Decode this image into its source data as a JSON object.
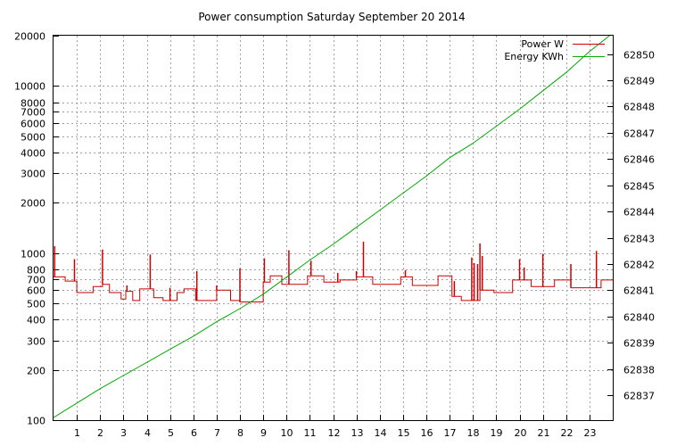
{
  "chart_data": {
    "type": "line",
    "title": "Power consumption Saturday September 20 2014",
    "xlabel": "",
    "ylabel": "",
    "xlim": [
      0,
      24
    ],
    "x_ticks": [
      1,
      2,
      3,
      4,
      5,
      6,
      7,
      8,
      9,
      10,
      11,
      12,
      13,
      14,
      15,
      16,
      17,
      18,
      19,
      20,
      21,
      22,
      23
    ],
    "y_left": {
      "scale": "log",
      "ylim": [
        100,
        20000
      ],
      "ticks": [
        {
          "value": 100,
          "label": "100"
        },
        {
          "value": 200,
          "label": "200"
        },
        {
          "value": 300,
          "label": "300"
        },
        {
          "value": 400,
          "label": "400"
        },
        {
          "value": 500,
          "label": "500"
        },
        {
          "value": 600,
          "label": "600"
        },
        {
          "value": 700,
          "label": "700"
        },
        {
          "value": 800,
          "label": "800"
        },
        {
          "value": 1000,
          "label": "1000"
        },
        {
          "value": 2000,
          "label": "2000"
        },
        {
          "value": 3000,
          "label": "3000"
        },
        {
          "value": 4000,
          "label": "4000"
        },
        {
          "value": 5000,
          "label": "5000"
        },
        {
          "value": 6000,
          "label": "6000"
        },
        {
          "value": 7000,
          "label": "7000"
        },
        {
          "value": 8000,
          "label": "8000"
        },
        {
          "value": 10000,
          "label": "10000"
        },
        {
          "value": 20000,
          "label": "20000"
        }
      ]
    },
    "y_right": {
      "scale": "linear",
      "ylim": [
        62836.05,
        62850.7
      ],
      "ticks": [
        62837,
        62838,
        62839,
        62840,
        62841,
        62842,
        62843,
        62844,
        62845,
        62846,
        62847,
        62848,
        62849,
        62850
      ]
    },
    "grid": true,
    "legend": "top-right",
    "series": [
      {
        "name": "Power W",
        "axis": "left",
        "color": "#cc0000",
        "steps": [
          [
            0.0,
            720
          ],
          [
            0.5,
            680
          ],
          [
            1.0,
            580
          ],
          [
            1.7,
            630
          ],
          [
            2.1,
            650
          ],
          [
            2.4,
            580
          ],
          [
            2.9,
            530
          ],
          [
            3.1,
            590
          ],
          [
            3.4,
            520
          ],
          [
            3.7,
            610
          ],
          [
            4.3,
            540
          ],
          [
            4.7,
            520
          ],
          [
            5.3,
            580
          ],
          [
            5.6,
            610
          ],
          [
            6.1,
            520
          ],
          [
            7.0,
            600
          ],
          [
            7.6,
            520
          ],
          [
            8.0,
            510
          ],
          [
            9.0,
            670
          ],
          [
            9.3,
            730
          ],
          [
            9.8,
            650
          ],
          [
            10.9,
            730
          ],
          [
            11.6,
            670
          ],
          [
            12.3,
            690
          ],
          [
            13.0,
            720
          ],
          [
            13.7,
            650
          ],
          [
            14.9,
            720
          ],
          [
            15.4,
            640
          ],
          [
            16.5,
            730
          ],
          [
            17.1,
            550
          ],
          [
            17.5,
            520
          ],
          [
            18.3,
            600
          ],
          [
            18.9,
            580
          ],
          [
            19.7,
            690
          ],
          [
            20.5,
            630
          ],
          [
            21.5,
            690
          ],
          [
            22.2,
            620
          ],
          [
            23.5,
            690
          ],
          [
            24.0,
            690
          ]
        ],
        "spikes": [
          [
            0.05,
            1100
          ],
          [
            0.9,
            920
          ],
          [
            2.1,
            1050
          ],
          [
            3.15,
            640
          ],
          [
            4.15,
            980
          ],
          [
            5.0,
            620
          ],
          [
            6.15,
            780
          ],
          [
            7.0,
            640
          ],
          [
            8.0,
            810
          ],
          [
            9.05,
            930
          ],
          [
            10.1,
            1040
          ],
          [
            11.05,
            900
          ],
          [
            12.2,
            760
          ],
          [
            13.0,
            780
          ],
          [
            13.3,
            1170
          ],
          [
            15.1,
            790
          ],
          [
            17.2,
            680
          ],
          [
            17.95,
            940
          ],
          [
            18.05,
            870
          ],
          [
            18.2,
            860
          ],
          [
            18.3,
            1140
          ],
          [
            18.4,
            960
          ],
          [
            19.2,
            580
          ],
          [
            20.0,
            920
          ],
          [
            20.2,
            820
          ],
          [
            21.0,
            990
          ],
          [
            22.2,
            860
          ],
          [
            23.3,
            1030
          ]
        ]
      },
      {
        "name": "Energy KWh",
        "axis": "right",
        "color": "#00aa00",
        "points": [
          [
            0,
            62836.15
          ],
          [
            1,
            62836.7
          ],
          [
            2,
            62837.25
          ],
          [
            3,
            62837.75
          ],
          [
            4,
            62838.25
          ],
          [
            5,
            62838.75
          ],
          [
            6,
            62839.25
          ],
          [
            7,
            62839.8
          ],
          [
            8,
            62840.3
          ],
          [
            9,
            62840.85
          ],
          [
            10,
            62841.5
          ],
          [
            11,
            62842.15
          ],
          [
            12,
            62842.75
          ],
          [
            13,
            62843.4
          ],
          [
            14,
            62844.05
          ],
          [
            15,
            62844.7
          ],
          [
            16,
            62845.35
          ],
          [
            17,
            62846.05
          ],
          [
            18,
            62846.6
          ],
          [
            19,
            62847.25
          ],
          [
            20,
            62847.9
          ],
          [
            21,
            62848.6
          ],
          [
            22,
            62849.3
          ],
          [
            23,
            62850.1
          ],
          [
            24,
            62850.8
          ]
        ]
      }
    ]
  }
}
